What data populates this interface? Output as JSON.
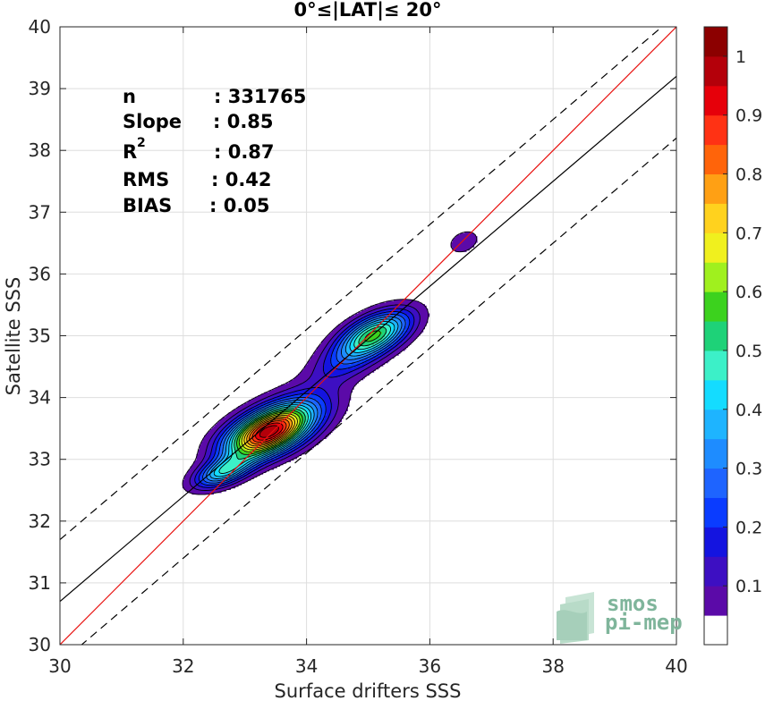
{
  "chart_data": {
    "type": "contour",
    "title": "0°≤|LAT|≤ 20°",
    "xlabel": "Surface drifters SSS",
    "ylabel": "Satellite SSS",
    "xlim": [
      30,
      40
    ],
    "ylim": [
      30,
      40
    ],
    "xticks": [
      "30",
      "32",
      "34",
      "36",
      "38",
      "40"
    ],
    "yticks": [
      "30",
      "31",
      "32",
      "33",
      "34",
      "35",
      "36",
      "37",
      "38",
      "39",
      "40"
    ],
    "grid": true,
    "stats": [
      {
        "label": "n",
        "value": ": 331765"
      },
      {
        "label": "Slope",
        "value": ": 0.85"
      },
      {
        "label": "R",
        "sup": "2",
        "value": ": 0.87"
      },
      {
        "label": "RMS",
        "value": ": 0.42"
      },
      {
        "label": "BIAS",
        "value": ": 0.05"
      }
    ],
    "lines": {
      "one_to_one": {
        "slope": 1,
        "intercept": 0,
        "color": "#e8110f"
      },
      "regression": {
        "slope": 0.85,
        "intercept": 5.2,
        "color": "#000000"
      },
      "upper_bound": {
        "slope": 0.85,
        "intercept": 6.2,
        "style": "dashed"
      },
      "lower_bound": {
        "slope": 0.85,
        "intercept": 4.2,
        "style": "dashed"
      }
    },
    "density_peaks": [
      {
        "x": 33.35,
        "y": 33.42,
        "sx": 0.46,
        "sy": 0.28,
        "rho": 0.5,
        "amp": 1.0
      },
      {
        "x": 32.65,
        "y": 32.8,
        "sx": 0.32,
        "sy": 0.18,
        "rho": 0.55,
        "amp": 0.45
      },
      {
        "x": 33.8,
        "y": 33.75,
        "sx": 0.5,
        "sy": 0.32,
        "rho": 0.5,
        "amp": 0.22
      },
      {
        "x": 35.1,
        "y": 35.02,
        "sx": 0.4,
        "sy": 0.26,
        "rho": 0.55,
        "amp": 0.62
      },
      {
        "x": 34.6,
        "y": 34.55,
        "sx": 0.4,
        "sy": 0.25,
        "rho": 0.5,
        "amp": 0.16
      },
      {
        "x": 36.55,
        "y": 36.52,
        "sx": 0.18,
        "sy": 0.14,
        "rho": 0.3,
        "amp": 0.11
      }
    ],
    "colorbar": {
      "ticks": [
        "0.1",
        "0.2",
        "0.3",
        "0.4",
        "0.5",
        "0.6",
        "0.7",
        "0.8",
        "0.9",
        "1"
      ],
      "levels": [
        0.05,
        0.1,
        0.15,
        0.2,
        0.25,
        0.3,
        0.35,
        0.4,
        0.45,
        0.5,
        0.55,
        0.6,
        0.65,
        0.7,
        0.75,
        0.8,
        0.85,
        0.9,
        0.95
      ],
      "colors": [
        "#ffffff",
        "#5b0aa8",
        "#3d0fc2",
        "#1414e0",
        "#0a3cff",
        "#1e64ff",
        "#1e8cff",
        "#1eb4ff",
        "#14dcff",
        "#3cf0c8",
        "#1ed278",
        "#3cd21e",
        "#a0f01e",
        "#f0f01e",
        "#ffd21e",
        "#ffa014",
        "#ff640a",
        "#ff3214",
        "#e6000a",
        "#b4000a",
        "#8c0000"
      ]
    }
  },
  "logo": {
    "line1": "smos",
    "line2": "pi-mep"
  }
}
